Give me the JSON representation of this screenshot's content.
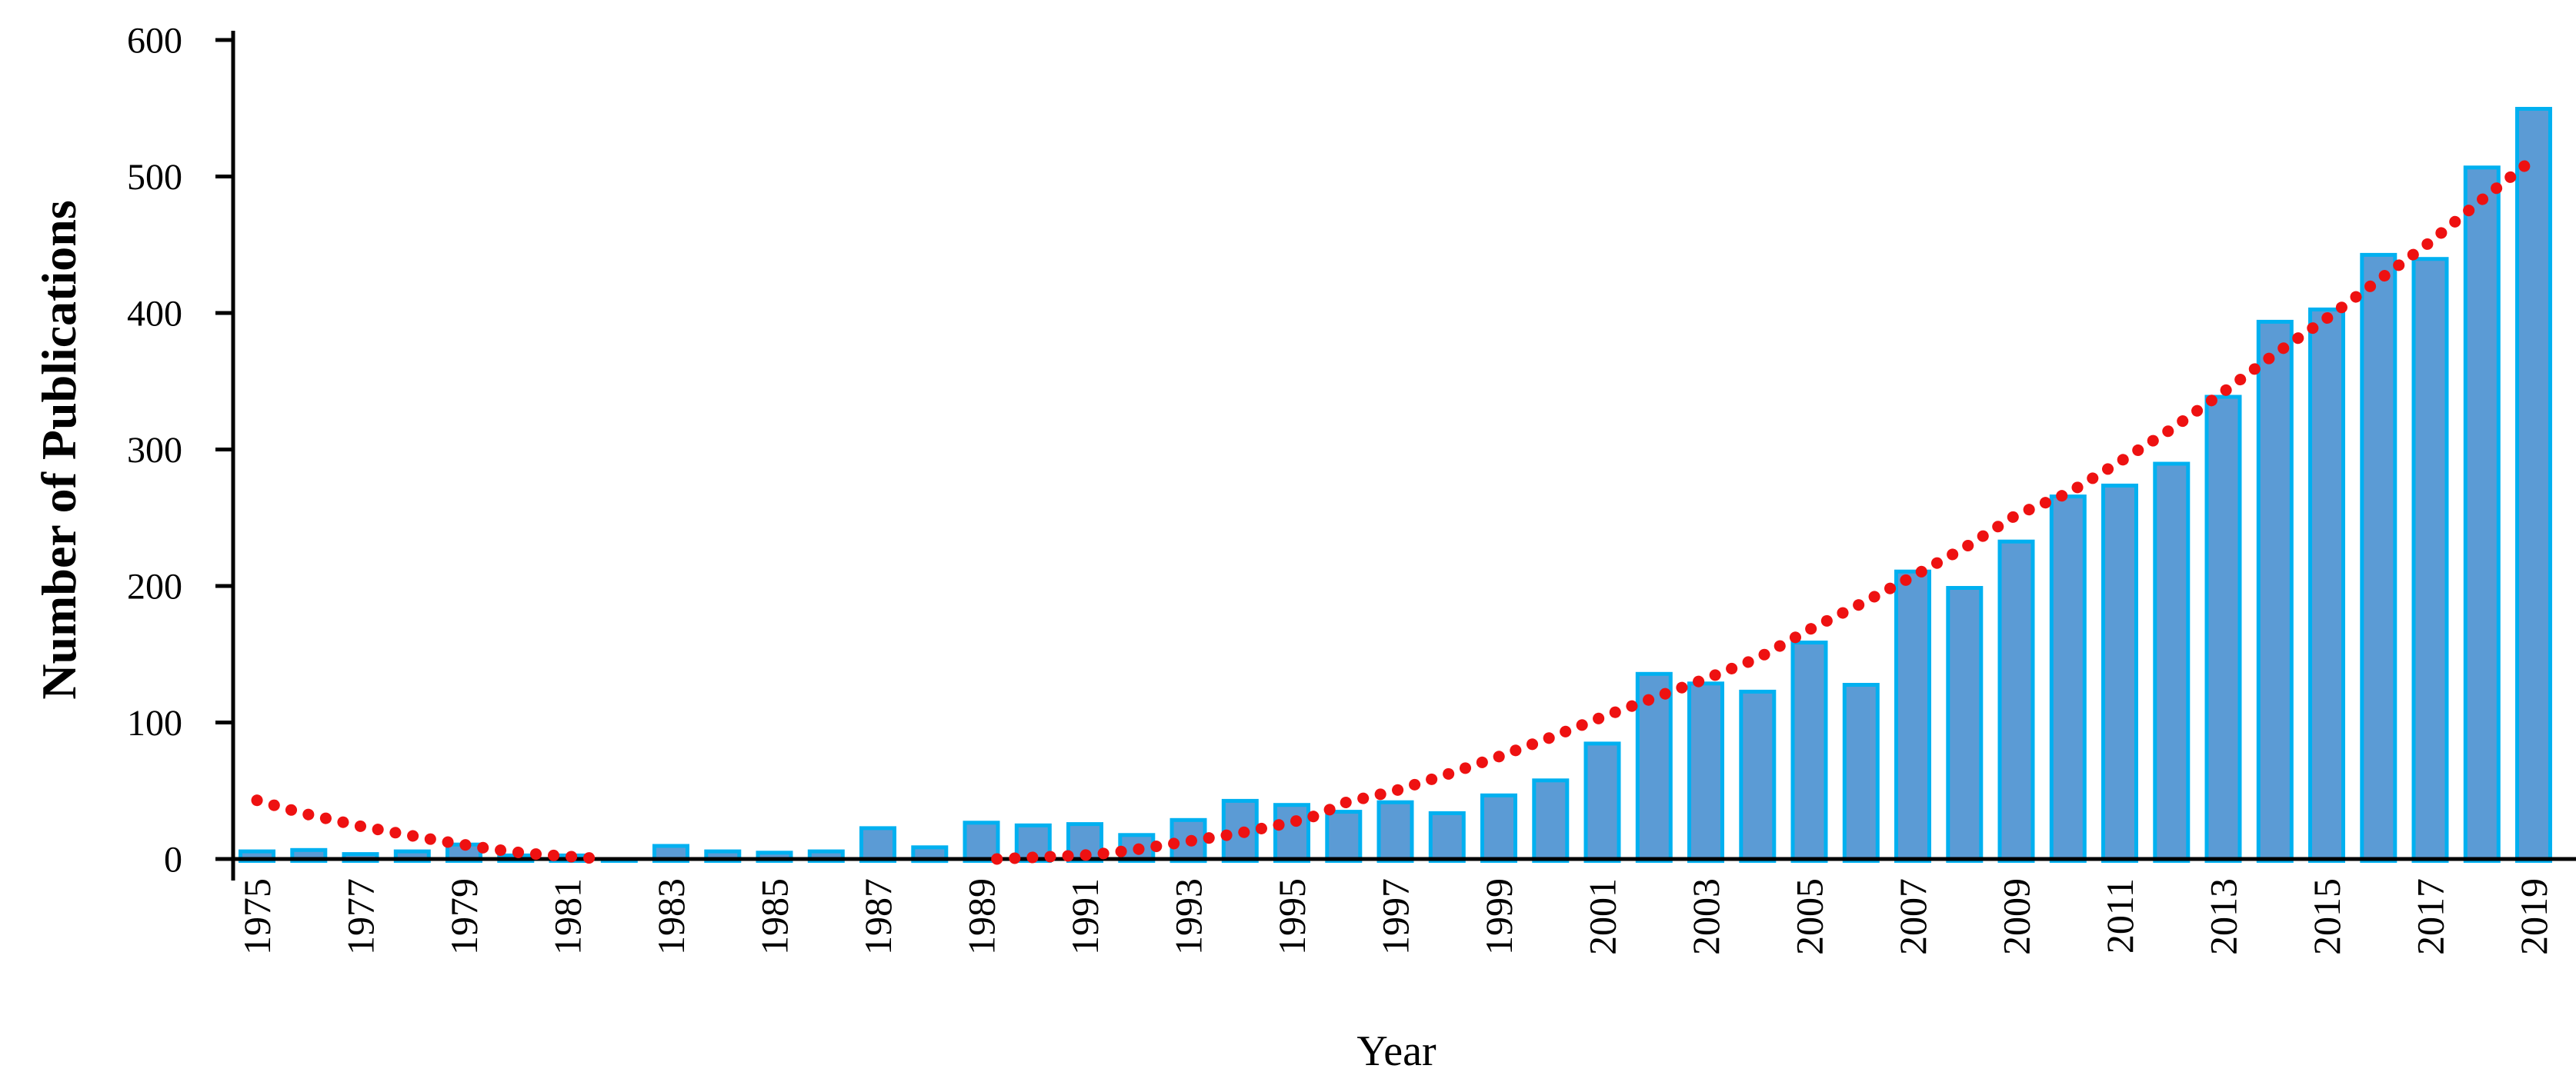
{
  "chart_data": {
    "type": "bar",
    "title": "",
    "xlabel": "Year",
    "ylabel": "Number of Publications",
    "ylim": [
      0,
      600
    ],
    "yticks": [
      0,
      100,
      200,
      300,
      400,
      500,
      600
    ],
    "grid": false,
    "legend": "none",
    "categories": [
      1975,
      1976,
      1977,
      1978,
      1979,
      1980,
      1981,
      1982,
      1983,
      1984,
      1985,
      1986,
      1987,
      1988,
      1989,
      1990,
      1991,
      1992,
      1993,
      1994,
      1995,
      1996,
      1997,
      1998,
      1999,
      2000,
      2001,
      2002,
      2003,
      2004,
      2005,
      2006,
      2007,
      2008,
      2009,
      2010,
      2011,
      2012,
      2013,
      2014,
      2015,
      2016,
      2017,
      2018,
      2019
    ],
    "values": [
      7,
      8,
      5,
      7,
      12,
      4,
      4,
      1,
      11,
      7,
      6,
      7,
      24,
      10,
      28,
      26,
      27,
      19,
      30,
      44,
      41,
      36,
      43,
      35,
      48,
      59,
      86,
      137,
      130,
      124,
      160,
      129,
      212,
      200,
      234,
      267,
      275,
      291,
      340,
      395,
      404,
      444,
      441,
      508,
      551
    ],
    "xticks_shown": [
      1975,
      1977,
      1979,
      1981,
      1983,
      1985,
      1987,
      1989,
      1991,
      1993,
      1995,
      1997,
      1999,
      2001,
      2003,
      2005,
      2007,
      2009,
      2011,
      2013,
      2015,
      2017,
      2019
    ],
    "trendline": {
      "style": "dotted",
      "description": "polynomial fit, dips below zero between ~1982 and ~1989 where it is clipped",
      "segments": [
        [
          [
            1975,
            43
          ],
          [
            1975.5,
            37.5
          ],
          [
            1976,
            32.5
          ],
          [
            1976.5,
            28.4
          ],
          [
            1977,
            24
          ],
          [
            1977.5,
            20.5
          ],
          [
            1978,
            17
          ],
          [
            1978.5,
            13.5
          ],
          [
            1979,
            10.5
          ],
          [
            1979.5,
            7.5
          ],
          [
            1980,
            5
          ],
          [
            1980.5,
            3.2
          ],
          [
            1981,
            1.9
          ],
          [
            1981.7,
            0
          ]
        ],
        [
          [
            1989.3,
            0
          ],
          [
            1990,
            1.2
          ],
          [
            1991,
            2.8
          ],
          [
            1991.5,
            4.5
          ],
          [
            1992,
            7
          ],
          [
            1992.5,
            10
          ],
          [
            1993,
            13
          ],
          [
            1994,
            19
          ],
          [
            1995,
            27
          ],
          [
            1995.5,
            32
          ],
          [
            1996,
            41
          ],
          [
            1996.5,
            45.5
          ],
          [
            1997,
            50
          ],
          [
            1998,
            62
          ],
          [
            1999,
            75
          ],
          [
            2000,
            89
          ],
          [
            2001,
            104
          ],
          [
            2002,
            118
          ],
          [
            2003,
            132
          ],
          [
            2004,
            147
          ],
          [
            2005,
            168
          ],
          [
            2006,
            187
          ],
          [
            2007,
            207
          ],
          [
            2008,
            228
          ],
          [
            2009,
            252
          ],
          [
            2010,
            268
          ],
          [
            2011,
            291
          ],
          [
            2012,
            315
          ],
          [
            2013,
            342
          ],
          [
            2014,
            370
          ],
          [
            2015,
            396
          ],
          [
            2016,
            424
          ],
          [
            2017,
            452
          ],
          [
            2018,
            483
          ],
          [
            2019,
            513
          ]
        ]
      ]
    },
    "colors": {
      "bar_fill": "#5b9bd5",
      "bar_border": "#00b0f0",
      "trend": "#ee1111",
      "axis": "#000000",
      "text": "#000000",
      "background": "#ffffff"
    }
  }
}
